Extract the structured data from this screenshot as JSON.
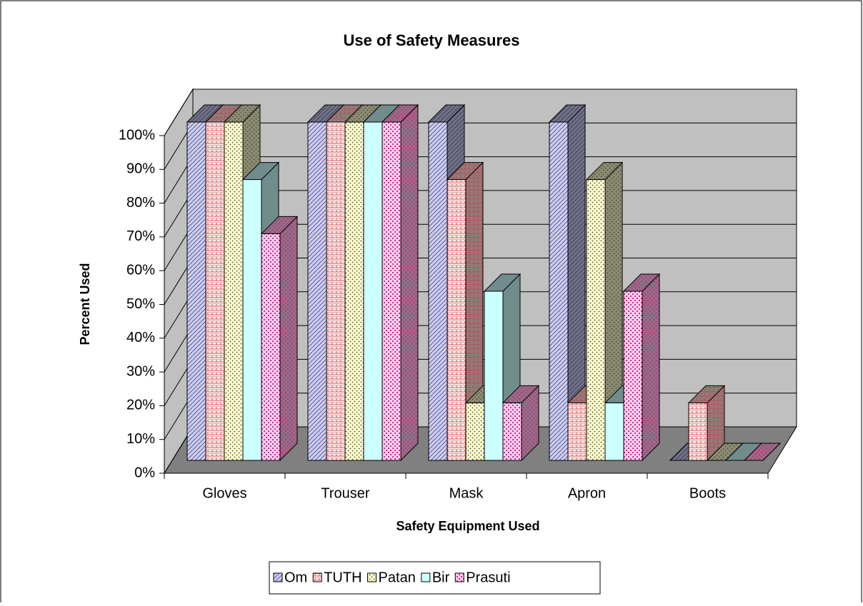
{
  "chart_data": {
    "type": "bar3d",
    "title": "Use of Safety Measures",
    "x_label": "Safety Equipment Used",
    "y_label": "Percent Used",
    "categories": [
      "Gloves",
      "Trouser",
      "Mask",
      "Apron",
      "Boots"
    ],
    "series": [
      {
        "name": "Om",
        "color": "#ccccff",
        "values": [
          100,
          100,
          100,
          100,
          0
        ]
      },
      {
        "name": "TUTH",
        "color": "#ffeeee",
        "values": [
          100,
          100,
          83,
          17,
          17
        ]
      },
      {
        "name": "Patan",
        "color": "#ffffcc",
        "values": [
          100,
          100,
          17,
          83,
          0
        ]
      },
      {
        "name": "Bir",
        "color": "#ccffff",
        "values": [
          83,
          100,
          50,
          17,
          0
        ]
      },
      {
        "name": "Prasuti",
        "color": "#ffccff",
        "values": [
          67,
          100,
          17,
          50,
          0
        ]
      }
    ],
    "ylim": [
      0,
      100
    ],
    "yticks": [
      {
        "value": 0,
        "label": "0%"
      },
      {
        "value": 10,
        "label": "10%"
      },
      {
        "value": 20,
        "label": "20%"
      },
      {
        "value": 30,
        "label": "30%"
      },
      {
        "value": 40,
        "label": "40%"
      },
      {
        "value": 50,
        "label": "50%"
      },
      {
        "value": 60,
        "label": "60%"
      },
      {
        "value": 70,
        "label": "70%"
      },
      {
        "value": 80,
        "label": "80%"
      },
      {
        "value": 90,
        "label": "90%"
      },
      {
        "value": 100,
        "label": "100%"
      }
    ],
    "grid": true,
    "legend": "bottom"
  }
}
